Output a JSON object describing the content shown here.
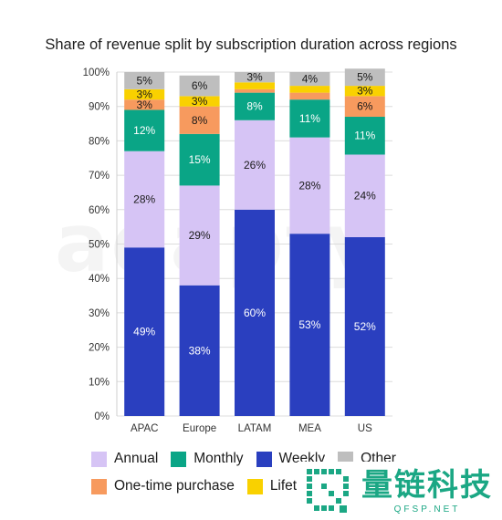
{
  "chart_data": {
    "type": "bar",
    "stacked": true,
    "title": "Share of revenue split by subscription duration across regions",
    "categories": [
      "APAC",
      "Europe",
      "LATAM",
      "MEA",
      "US"
    ],
    "ylim": [
      0,
      100
    ],
    "y_ticks": [
      "0%",
      "10%",
      "20%",
      "30%",
      "40%",
      "50%",
      "60%",
      "70%",
      "80%",
      "90%",
      "100%"
    ],
    "series": [
      {
        "name": "Weekly",
        "color": "#2a3fbf",
        "values": [
          49,
          38,
          60,
          53,
          52
        ],
        "labels": [
          "49%",
          "38%",
          "60%",
          "53%",
          "52%"
        ],
        "label_color": "#ffffff"
      },
      {
        "name": "Annual",
        "color": "#d6c4f5",
        "values": [
          28,
          29,
          26,
          28,
          24
        ],
        "labels": [
          "28%",
          "29%",
          "26%",
          "28%",
          "24%"
        ],
        "label_color": "#1a1a1a"
      },
      {
        "name": "Monthly",
        "color": "#0aa586",
        "values": [
          12,
          15,
          8,
          11,
          11
        ],
        "labels": [
          "12%",
          "15%",
          "8%",
          "11%",
          "11%"
        ],
        "label_color": "#ffffff"
      },
      {
        "name": "One-time purchase",
        "color": "#f79a5e",
        "values": [
          3,
          8,
          1,
          2,
          6
        ],
        "labels": [
          "3%",
          "8%",
          "",
          "",
          "6%"
        ],
        "label_color": "#1a1a1a"
      },
      {
        "name": "Lifetime",
        "color": "#f9d100",
        "values": [
          3,
          3,
          2,
          2,
          3
        ],
        "labels": [
          "3%",
          "3%",
          "",
          "",
          "3%"
        ],
        "label_color": "#1a1a1a"
      },
      {
        "name": "Other",
        "color": "#bebebe",
        "values": [
          5,
          6,
          3,
          4,
          5
        ],
        "labels": [
          "5%",
          "6%",
          "3%",
          "4%",
          "5%"
        ],
        "label_color": "#1a1a1a"
      }
    ],
    "legend": {
      "placement": "bottom",
      "rows": [
        [
          {
            "name": "Annual",
            "color": "#d6c4f5"
          },
          {
            "name": "Monthly",
            "color": "#0aa586"
          },
          {
            "name": "Weekly",
            "color": "#2a3fbf"
          },
          {
            "name": "Other",
            "color": "#bebebe"
          }
        ],
        [
          {
            "name": "One-time purchase",
            "color": "#f79a5e"
          },
          {
            "name": "Lifeti",
            "color": "#f9d100"
          }
        ]
      ]
    },
    "grid": true
  },
  "watermark": {
    "text": "adapty"
  },
  "brand": {
    "main": "量链科技",
    "sub": "QFSP.NET",
    "color": "#1ba784"
  }
}
